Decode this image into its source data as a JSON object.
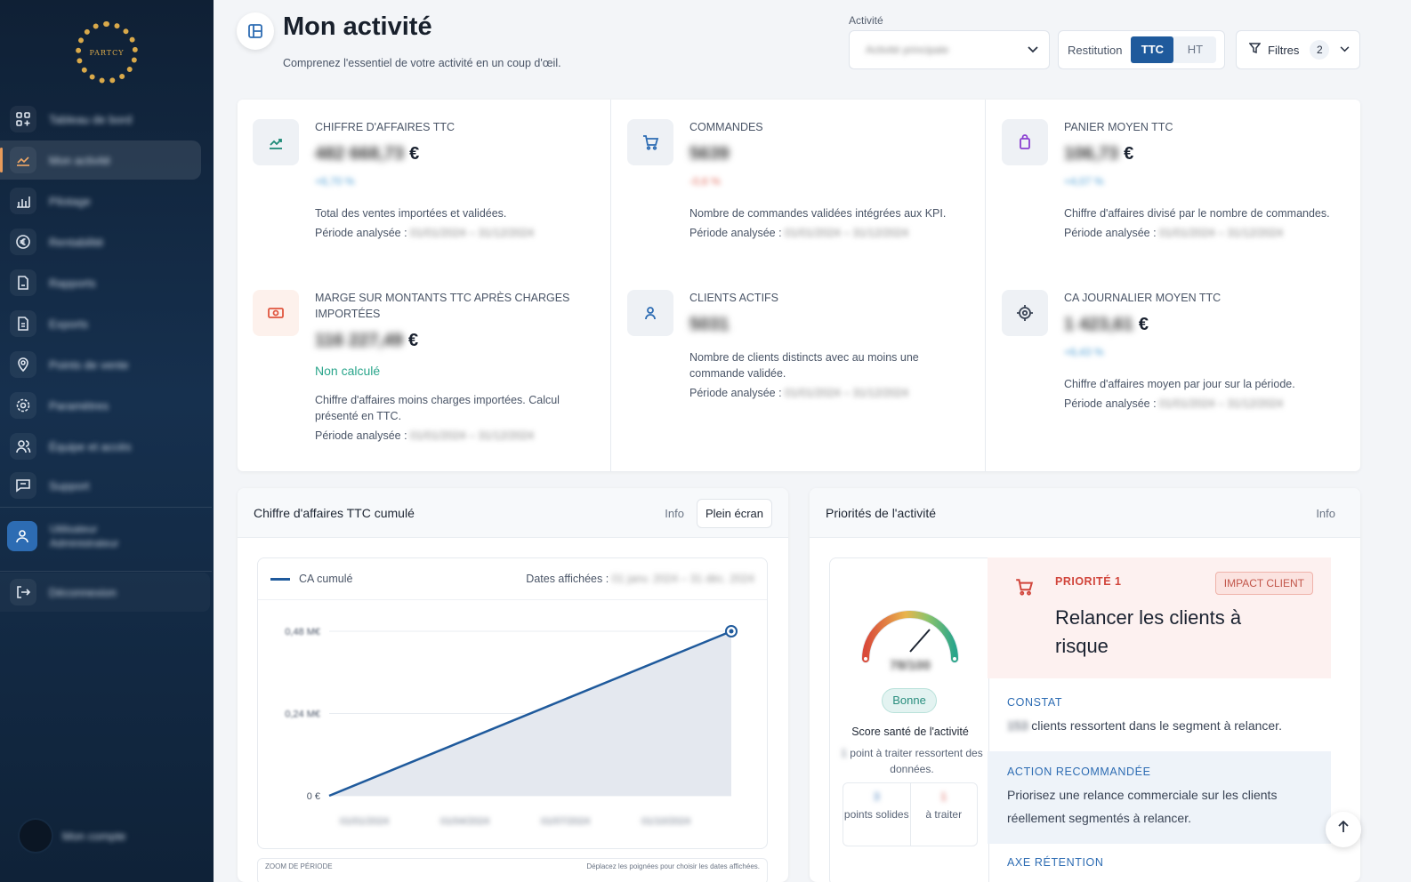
{
  "app": {
    "logo_text": "PARTCY"
  },
  "sidebar": {
    "items": [
      {
        "icon": "grid-plus-icon",
        "label": "Tableau de bord"
      },
      {
        "icon": "trend-chart-icon",
        "label": "Mon activité"
      },
      {
        "icon": "bar-chart-icon",
        "label": "Pilotage"
      },
      {
        "icon": "euro-icon",
        "label": "Rentabilité"
      },
      {
        "icon": "document-icon",
        "label": "Rapports"
      },
      {
        "icon": "file-icon",
        "label": "Exports"
      },
      {
        "icon": "location-pin-icon",
        "label": "Points de vente"
      },
      {
        "icon": "gear-icon",
        "label": "Paramètres"
      },
      {
        "icon": "users-icon",
        "label": "Équipe et accès"
      },
      {
        "icon": "chat-icon",
        "label": "Support"
      }
    ],
    "user": {
      "name": "Utilisateur",
      "role": "Administrateur"
    },
    "logout_label": "Déconnexion",
    "bottom_user": "Mon compte"
  },
  "header": {
    "title": "Mon activité",
    "subtitle": "Comprenez l'essentiel de votre activité en un coup d'œil.",
    "activity_label": "Activité",
    "activity_value": "Activité principale",
    "restitution_label": "Restitution",
    "toggle": [
      "TTC",
      "HT"
    ],
    "toggle_selected": "TTC",
    "filters_label": "Filtres",
    "filters_count": "2"
  },
  "kpis": [
    {
      "icon": "trend-chart-icon",
      "label": "CHIFFRE D'AFFAIRES TTC",
      "value": "482 668,73",
      "unit": "€",
      "trend": "+6,70 %",
      "desc": "Total des ventes importées et validées.",
      "period_label": "Période analysée :",
      "period": "01/01/2024 – 31/12/2024"
    },
    {
      "icon": "cart-icon",
      "label": "COMMANDES",
      "value": "5639",
      "unit": "",
      "trend": "-0,6 %",
      "trend_negative": true,
      "desc": "Nombre de commandes validées intégrées aux KPI.",
      "period_label": "Période analysée :",
      "period": "01/01/2024 – 31/12/2024"
    },
    {
      "icon": "bag-icon",
      "label": "PANIER MOYEN TTC",
      "value": "106,73",
      "unit": "€",
      "trend": "+4,07 %",
      "desc": "Chiffre d'affaires divisé par le nombre de commandes.",
      "period_label": "Période analysée :",
      "period": "01/01/2024 – 31/12/2024"
    },
    {
      "icon": "banknote-icon",
      "label": "MARGE SUR MONTANTS TTC APRÈS CHARGES IMPORTÉES",
      "value": "116 227,49",
      "unit": "€",
      "not_computed": "Non calculé",
      "desc": "Chiffre d'affaires moins charges importées. Calcul présenté en TTC.",
      "period_label": "Période analysée :",
      "period": "01/01/2024 – 31/12/2024"
    },
    {
      "icon": "user-icon",
      "label": "CLIENTS ACTIFS",
      "value": "5031",
      "unit": "",
      "desc": "Nombre de clients distincts avec au moins une commande validée.",
      "period_label": "Période analysée :",
      "period": "01/01/2024 – 31/12/2024"
    },
    {
      "icon": "target-icon",
      "label": "CA JOURNALIER MOYEN TTC",
      "value": "1 423,61",
      "unit": "€",
      "trend": "+6,43 %",
      "desc": "Chiffre d'affaires moyen par jour sur la période.",
      "period_label": "Période analysée :",
      "period": "01/01/2024 – 31/12/2024"
    }
  ],
  "chart_card": {
    "title": "Chiffre d'affaires TTC cumulé",
    "info_label": "Info",
    "fullscreen_label": "Plein écran",
    "dates_label": "Dates affichées :",
    "dates_value": "01 janv. 2024 – 31 déc. 2024",
    "zoom_label": "ZOOM DE PÉRIODE",
    "zoom_hint": "Déplacez les poignées pour choisir les dates affichées."
  },
  "chart_data": {
    "type": "area",
    "title": "",
    "series": [
      {
        "name": "CA cumulé",
        "color": "#1f5a9c"
      }
    ],
    "x": [
      "01 janv. 2024",
      "31 déc. 2024"
    ],
    "values": [
      0,
      0.48
    ],
    "y_ticks": [
      "0 €",
      "0,24 M€",
      "0,48 M€"
    ],
    "x_ticks": [
      "01/01/2024",
      "01/04/2024",
      "01/07/2024",
      "01/10/2024"
    ],
    "ylim": [
      0,
      0.48
    ],
    "grid": true,
    "legend": "top-left"
  },
  "priorities": {
    "title": "Priorités de l'activité",
    "info_label": "Info",
    "score_value": "78/100",
    "score_level": "Bonne",
    "score_title": "Score santé de l'activité",
    "score_sub_count": "1",
    "score_sub_text": "point à traiter ressortent des données.",
    "stat_solid_num": "3",
    "stat_solid_label": "points solides",
    "stat_todo_num": "1",
    "stat_todo_label": "à traiter",
    "priority_tag": "PRIORITÉ 1",
    "impact_tag": "IMPACT CLIENT",
    "headline": "Relancer les clients à risque",
    "constat_title": "CONSTAT",
    "constat_count": "153",
    "constat_text": "clients ressortent dans le segment à relancer.",
    "action_title": "ACTION RECOMMANDÉE",
    "action_text": "Priorisez une relance commerciale sur les clients réellement segmentés à relancer.",
    "axe_title": "AXE RÉTENTION"
  },
  "colors": {
    "accent": "#1f5a9c",
    "success": "#2aa58b",
    "danger": "#d1453b"
  }
}
